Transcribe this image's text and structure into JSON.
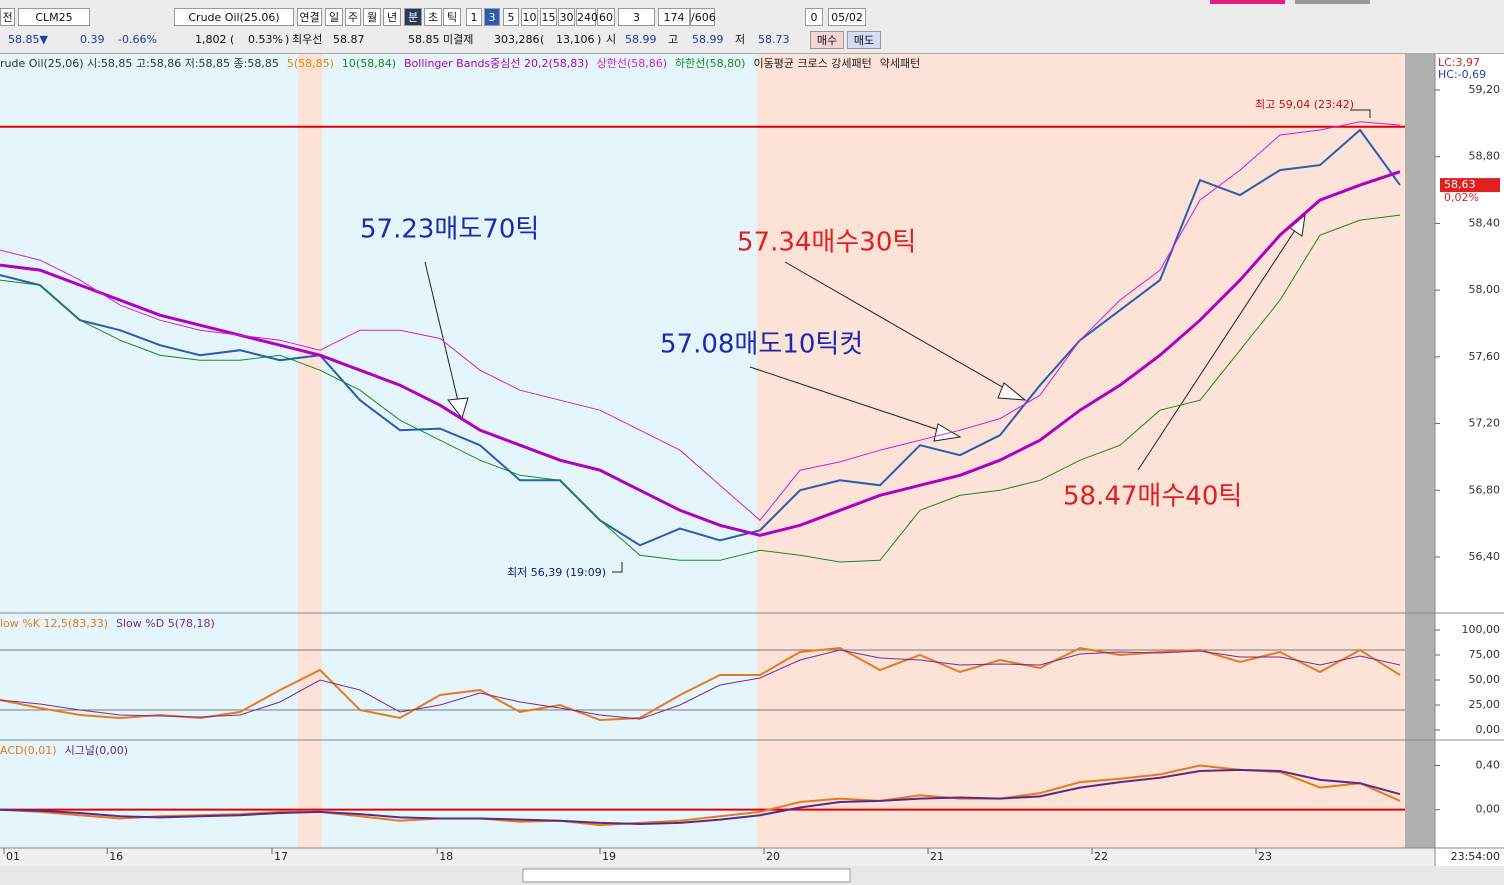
{
  "toolbar": {
    "row1": [
      "전",
      "CLM25",
      "Crude Oil(25.06)",
      "연결",
      "일",
      "주",
      "월",
      "년",
      "분",
      "초",
      "틱",
      "1",
      "3",
      "5",
      "10",
      "15",
      "30",
      "240",
      "60",
      "3",
      "174",
      "/606",
      "0",
      "05/02"
    ],
    "row2": [
      "58.85▼",
      "0.39",
      "-0.66%",
      "1,802",
      "(",
      "0.53%",
      ")",
      "최우선",
      "58.87",
      "58.85",
      "미결제",
      "303,286",
      "(",
      "13,106",
      ")",
      "시",
      "58.99",
      "고",
      "58.99",
      "저",
      "58.73",
      "매수",
      "매도"
    ]
  },
  "legend_extra": [
    {
      "text": "5(58,85)",
      "color": "#e08a00"
    },
    {
      "text": "10(58,84)",
      "color": "#1a8a1a"
    },
    {
      "text": "이동평균 크로스 강세패턴",
      "color": "#222"
    },
    {
      "text": "약세패턴",
      "color": "#222"
    }
  ],
  "annotations": [
    {
      "text": "57.23매도70틱",
      "color": "#1a2ab0"
    },
    {
      "text": "57.34매수30틱",
      "color": "#e02020"
    },
    {
      "text": "57.08매도10틱컷",
      "color": "#1a2ab0"
    },
    {
      "text": "58.47매수40틱",
      "color": "#e02020"
    },
    {
      "text": "최고 59,04 (23:42)",
      "color": "#c01010"
    },
    {
      "text": "최저 56,39 (19:09)",
      "color": "#102070"
    }
  ],
  "price_info": {
    "lc": "LC:3,97",
    "hc": "HC:-0,69",
    "last_price": {
      "value": 58.63,
      "label": "58,63"
    },
    "last_change": "0,02%"
  },
  "chart_data": [
    {
      "type": "line",
      "categories": [
        null,
        null,
        null,
        null,
        null,
        null,
        null,
        null,
        null,
        null,
        null,
        null,
        null,
        null,
        null,
        null,
        null,
        null,
        null,
        null,
        null,
        null,
        null,
        null,
        null,
        null,
        null,
        null,
        null,
        null,
        null,
        null,
        null,
        null,
        null,
        null
      ],
      "xlim": [
        0,
        35.875
      ],
      "ylim": [
        56.07,
        59.41
      ],
      "yticks": [
        {
          "value": 59.2,
          "label": "59,20"
        },
        {
          "value": 58.8,
          "label": "58,80"
        },
        {
          "value": 58.4,
          "label": "58,40"
        },
        {
          "value": 58.0,
          "label": "58,00"
        },
        {
          "value": 57.6,
          "label": "57,60"
        },
        {
          "value": 57.2,
          "label": "57,20"
        },
        {
          "value": 56.8,
          "label": "56,80"
        },
        {
          "value": 56.4,
          "label": "56,40"
        }
      ],
      "hlines": [
        {
          "value": 58.98,
          "color": "#e00000"
        }
      ],
      "series": [
        {
          "name": "rude Oil(25,06) 시:58,85 고:58,86 저:58,85 종:58,85",
          "color": "#2a5db0",
          "width": 2,
          "values": [
            58.09,
            58.03,
            57.82,
            57.76,
            57.67,
            57.61,
            57.64,
            57.58,
            57.61,
            57.34,
            57.16,
            57.17,
            57.07,
            56.86,
            56.86,
            56.62,
            56.47,
            56.57,
            56.5,
            56.56,
            56.8,
            56.86,
            56.83,
            57.07,
            57.01,
            57.13,
            57.43,
            57.7,
            57.88,
            58.06,
            58.66,
            58.57,
            58.72,
            58.75,
            58.96,
            58.63
          ]
        },
        {
          "name": "Bollinger Bands중심선 20,2(58,83)",
          "color": "#b000c0",
          "width": 3,
          "values": [
            58.15,
            58.12,
            58.03,
            57.94,
            57.85,
            57.79,
            57.73,
            57.67,
            57.61,
            57.52,
            57.43,
            57.31,
            57.16,
            57.07,
            56.98,
            56.92,
            56.8,
            56.68,
            56.59,
            56.53,
            56.59,
            56.68,
            56.77,
            56.83,
            56.89,
            56.98,
            57.1,
            57.28,
            57.43,
            57.61,
            57.82,
            58.06,
            58.33,
            58.54,
            58.63,
            58.71
          ]
        },
        {
          "name": "상한선(58,86)",
          "color": "#d020d0",
          "width": 1,
          "values": [
            58.24,
            58.18,
            58.06,
            57.91,
            57.82,
            57.76,
            57.73,
            57.7,
            57.64,
            57.76,
            57.76,
            57.71,
            57.52,
            57.4,
            57.34,
            57.28,
            57.16,
            57.04,
            56.83,
            56.62,
            56.92,
            56.97,
            57.04,
            57.1,
            57.16,
            57.23,
            57.37,
            57.7,
            57.94,
            58.12,
            58.54,
            58.72,
            58.93,
            58.96,
            59.01,
            58.99
          ]
        },
        {
          "name": "하한선(58,80)",
          "color": "#1a8a1a",
          "width": 1,
          "values": [
            58.06,
            58.03,
            57.82,
            57.7,
            57.61,
            57.58,
            57.58,
            57.61,
            57.52,
            57.4,
            57.22,
            57.1,
            56.98,
            56.89,
            56.86,
            56.62,
            56.41,
            56.38,
            56.38,
            56.44,
            56.41,
            56.37,
            56.38,
            56.68,
            56.77,
            56.8,
            56.86,
            56.98,
            57.07,
            57.28,
            57.34,
            57.64,
            57.94,
            58.33,
            58.42,
            58.45
          ]
        }
      ]
    },
    {
      "type": "line",
      "categories": [
        null,
        null,
        null,
        null,
        null,
        null,
        null,
        null,
        null,
        null,
        null,
        null,
        null,
        null,
        null,
        null,
        null,
        null,
        null,
        null,
        null,
        null,
        null,
        null,
        null,
        null,
        null,
        null,
        null,
        null,
        null,
        null,
        null,
        null,
        null,
        null
      ],
      "xlim": [
        0,
        35.875
      ],
      "ylim": [
        -10,
        115
      ],
      "yticks": [
        {
          "value": 100,
          "label": "100,00"
        },
        {
          "value": 75,
          "label": "75,00"
        },
        {
          "value": 50,
          "label": "50,00"
        },
        {
          "value": 25,
          "label": "25,00"
        },
        {
          "value": 0,
          "label": "0,00"
        }
      ],
      "hlines": [
        {
          "value": 80,
          "color": "#777"
        },
        {
          "value": 20,
          "color": "#777"
        }
      ],
      "series": [
        {
          "name": "low %K 12,5(83,33)",
          "color": "#e87a1e",
          "width": 2,
          "values": [
            30,
            22,
            15,
            12,
            15,
            12,
            18,
            40,
            60,
            20,
            12,
            35,
            40,
            18,
            25,
            10,
            12,
            35,
            55,
            55,
            78,
            82,
            60,
            75,
            58,
            70,
            62,
            82,
            75,
            78,
            80,
            68,
            78,
            58,
            80,
            55
          ]
        },
        {
          "name": "Slow %D 5(78,18)",
          "color": "#7a2a9a",
          "width": 1,
          "values": [
            30,
            26,
            20,
            15,
            14,
            13,
            15,
            28,
            50,
            40,
            18,
            25,
            37,
            28,
            22,
            15,
            11,
            25,
            45,
            52,
            70,
            80,
            72,
            70,
            65,
            66,
            65,
            76,
            78,
            77,
            79,
            73,
            73,
            65,
            74,
            65
          ]
        }
      ]
    },
    {
      "type": "line",
      "categories": [
        null,
        null,
        null,
        null,
        null,
        null,
        null,
        null,
        null,
        null,
        null,
        null,
        null,
        null,
        null,
        null,
        null,
        null,
        null,
        null,
        null,
        null,
        null,
        null,
        null,
        null,
        null,
        null,
        null,
        null,
        null,
        null,
        null,
        null,
        null,
        null
      ],
      "xlim": [
        0,
        35.875
      ],
      "ylim": [
        -0.347,
        0.613
      ],
      "yticks": [
        {
          "value": 0.4,
          "label": "0,40"
        },
        {
          "value": 0,
          "label": "0,00"
        }
      ],
      "hlines": [
        {
          "value": 0,
          "color": "#e00000"
        }
      ],
      "xticks": [
        {
          "value": 0.1,
          "label": "01"
        },
        {
          "value": 2.68,
          "label": "16"
        },
        {
          "value": 6.8,
          "label": "17"
        },
        {
          "value": 10.93,
          "label": "18"
        },
        {
          "value": 15,
          "label": "19"
        },
        {
          "value": 19.1,
          "label": "20"
        },
        {
          "value": 23.2,
          "label": "21"
        },
        {
          "value": 27.3,
          "label": "22"
        },
        {
          "value": 31.4,
          "label": "23"
        }
      ],
      "x_end_label": "23:54:00",
      "series": [
        {
          "name": "ACD(0,01)",
          "color": "#e87a1e",
          "width": 2,
          "values": [
            0,
            -0.02,
            -0.05,
            -0.08,
            -0.06,
            -0.05,
            -0.04,
            -0.02,
            -0.02,
            -0.06,
            -0.1,
            -0.08,
            -0.08,
            -0.11,
            -0.1,
            -0.14,
            -0.12,
            -0.1,
            -0.06,
            -0.02,
            0.07,
            0.1,
            0.08,
            0.13,
            0.1,
            0.1,
            0.15,
            0.25,
            0.28,
            0.32,
            0.4,
            0.36,
            0.34,
            0.2,
            0.24,
            0.08
          ]
        },
        {
          "name": "시그널(0,00)",
          "color": "#5a2a8a",
          "width": 2,
          "values": [
            0,
            -0.01,
            -0.03,
            -0.06,
            -0.07,
            -0.06,
            -0.05,
            -0.03,
            -0.02,
            -0.04,
            -0.07,
            -0.08,
            -0.08,
            -0.09,
            -0.1,
            -0.12,
            -0.13,
            -0.12,
            -0.09,
            -0.05,
            0.02,
            0.07,
            0.08,
            0.1,
            0.11,
            0.1,
            0.12,
            0.2,
            0.25,
            0.29,
            0.35,
            0.36,
            0.35,
            0.27,
            0.24,
            0.14
          ]
        }
      ]
    }
  ]
}
